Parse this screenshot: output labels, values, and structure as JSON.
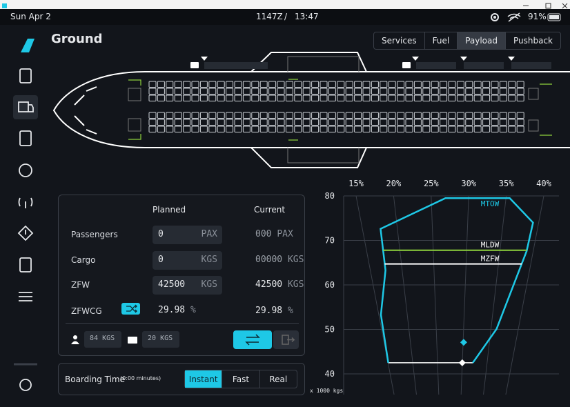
{
  "status_bar": {
    "date": "Sun Apr 2",
    "utc_time": "1147Z",
    "separator": "/",
    "local_time": "13:47",
    "battery": "91%"
  },
  "page_title": "Ground",
  "tabs": {
    "items": [
      "Services",
      "Fuel",
      "Payload",
      "Pushback"
    ],
    "active": 2
  },
  "payload": {
    "headers": [
      "Planned",
      "Current"
    ],
    "rows": [
      {
        "label": "Passengers",
        "planned": "0",
        "planned_unit": "PAX",
        "current": "000",
        "current_unit": "PAX"
      },
      {
        "label": "Cargo",
        "planned": "0",
        "planned_unit": "KGS",
        "current": "00000",
        "current_unit": "KGS"
      },
      {
        "label": "ZFW",
        "planned": "42500",
        "planned_unit": "KGS",
        "current": "42500",
        "current_unit": "KGS"
      },
      {
        "label": "ZFWCG",
        "planned": "29.98",
        "planned_unit": "%",
        "current": "29.98",
        "current_unit": "%"
      }
    ],
    "passenger_weight": "84",
    "passenger_weight_unit": "KGS",
    "bag_weight": "20",
    "bag_weight_unit": "KGS"
  },
  "boarding": {
    "label": "Boarding Time",
    "duration": "(0:00 minutes)",
    "options": [
      "Instant",
      "Fast",
      "Real"
    ],
    "active": 0
  },
  "chart_data": {
    "type": "envelope",
    "xlim": [
      15,
      40
    ],
    "xticks": [
      {
        "value": 15,
        "label": "15%"
      },
      {
        "value": 20,
        "label": "20%"
      },
      {
        "value": 25,
        "label": "25%"
      },
      {
        "value": 30,
        "label": "30%"
      },
      {
        "value": 35,
        "label": "35%"
      },
      {
        "value": 40,
        "label": "40%"
      }
    ],
    "ylim": [
      40,
      80
    ],
    "yticks": [
      40,
      50,
      60,
      70,
      80
    ],
    "y_axis_label": "x 1000 kgs",
    "envelope": {
      "mac": [
        15.1,
        15.4,
        17.4,
        17.6,
        26.9,
        35.5,
        39.2,
        39.0,
        36.0,
        32.1
      ],
      "weight": [
        42.5,
        53.3,
        63.3,
        72.6,
        79.5,
        79.5,
        74.0,
        67.6,
        50.1,
        42.5
      ],
      "color": "#1ec8e6"
    },
    "limits": [
      {
        "name": "MTOW",
        "value": 79.5,
        "color": "#1ec8e6"
      },
      {
        "name": "MLDW",
        "value": 67.8,
        "color": "#8ed23c"
      },
      {
        "name": "MZFW",
        "value": 64.7,
        "color": "#ffffff"
      }
    ],
    "points": {
      "mac": [
        29.98,
        30.1
      ],
      "weight": [
        42.5,
        47.1
      ],
      "colors": [
        "#ffffff",
        "#1ec8e6"
      ]
    }
  }
}
